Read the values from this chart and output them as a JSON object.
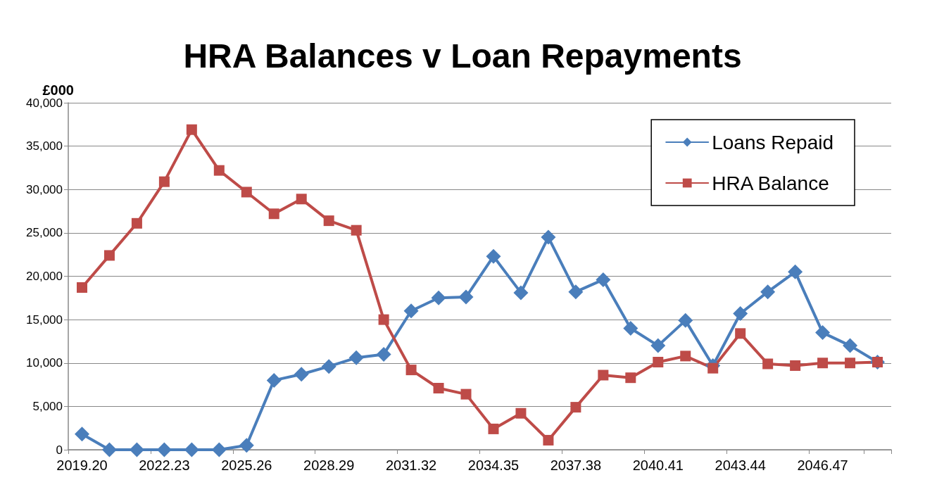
{
  "chart_data": {
    "type": "line",
    "title": "HRA Balances v Loan Repayments",
    "ylabel": "£000",
    "categories": [
      "2019.20",
      null,
      null,
      "2022.23",
      null,
      null,
      "2025.26",
      null,
      null,
      "2028.29",
      null,
      null,
      "2031.32",
      null,
      null,
      "2034.35",
      null,
      null,
      "2037.38",
      null,
      null,
      "2040.41",
      null,
      null,
      "2043.44",
      null,
      null,
      "2046.47",
      null,
      null
    ],
    "series": [
      {
        "name": "Loans Repaid",
        "color": "#4a7ebb",
        "marker": "diamond",
        "values": [
          1800,
          0,
          0,
          0,
          0,
          0,
          500,
          8000,
          8700,
          9600,
          10600,
          11000,
          16000,
          17500,
          17600,
          22300,
          18100,
          24500,
          18200,
          19600,
          14000,
          12000,
          14900,
          9700,
          15700,
          18200,
          20500,
          13500,
          12000,
          10100
        ]
      },
      {
        "name": "HRA Balance",
        "color": "#be4b48",
        "marker": "square",
        "values": [
          18700,
          22400,
          26100,
          30900,
          36900,
          32200,
          29700,
          27200,
          28900,
          26400,
          25300,
          15000,
          9200,
          7100,
          6400,
          2400,
          4200,
          1100,
          4900,
          8600,
          8300,
          10100,
          10800,
          9400,
          13400,
          9900,
          9700,
          10000,
          10000,
          10100
        ]
      }
    ],
    "ylim": [
      0,
      40000
    ],
    "yticks": [
      0,
      {
        "value": 5000,
        "label": "5,000"
      },
      {
        "value": 10000,
        "label": "10,000"
      },
      {
        "value": 15000,
        "label": "15,000"
      },
      {
        "value": 20000,
        "label": "20,000"
      },
      {
        "value": 25000,
        "label": "25,000"
      },
      {
        "value": 30000,
        "label": "30,000"
      },
      {
        "value": 35000,
        "label": "35,000"
      },
      {
        "value": 40000,
        "label": "40,000"
      }
    ],
    "grid": "y",
    "legend": "top right",
    "line_style": "solid"
  }
}
